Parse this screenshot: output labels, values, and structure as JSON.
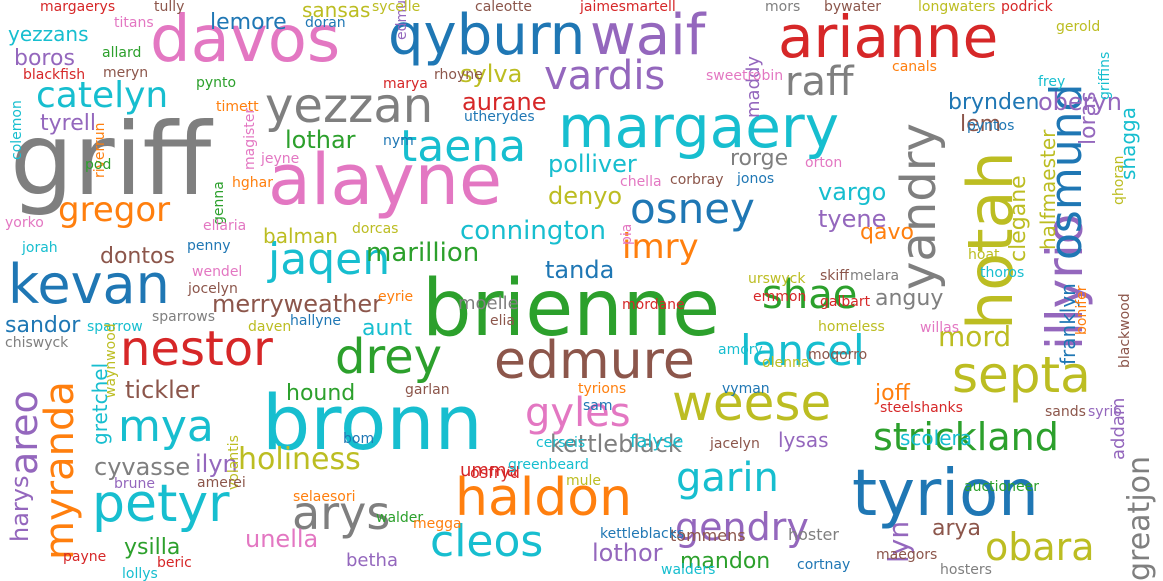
{
  "palette": {
    "blue": "#1f77b4",
    "orange": "#ff7f0e",
    "green": "#2ca02c",
    "red": "#d62728",
    "purple": "#9467bd",
    "brown": "#8c564b",
    "pink": "#e377c2",
    "gray": "#7f7f7f",
    "olive": "#bcbd22",
    "cyan": "#17becf"
  },
  "words": [
    {
      "text": "griff",
      "c": "gray"
    },
    {
      "text": "brienne",
      "c": "green"
    },
    {
      "text": "bronn",
      "c": "cyan"
    },
    {
      "text": "alayne",
      "c": "pink"
    },
    {
      "text": "davos",
      "c": "pink"
    },
    {
      "text": "tyrion",
      "c": "blue"
    },
    {
      "text": "hotah",
      "c": "olive"
    },
    {
      "text": "arianne",
      "c": "red"
    },
    {
      "text": "margaery",
      "c": "cyan"
    },
    {
      "text": "qyburn",
      "c": "blue"
    },
    {
      "text": "waif",
      "c": "purple"
    },
    {
      "text": "edmure",
      "c": "brown"
    },
    {
      "text": "kevan",
      "c": "blue"
    },
    {
      "text": "petyr",
      "c": "cyan"
    },
    {
      "text": "haldon",
      "c": "orange"
    },
    {
      "text": "yezzan",
      "c": "gray"
    },
    {
      "text": "weese",
      "c": "olive"
    },
    {
      "text": "yandry",
      "c": "gray"
    },
    {
      "text": "nestor",
      "c": "red"
    },
    {
      "text": "drey",
      "c": "green"
    },
    {
      "text": "septa",
      "c": "olive"
    },
    {
      "text": "illyrio",
      "c": "purple"
    },
    {
      "text": "osmund",
      "c": "blue"
    },
    {
      "text": "arys",
      "c": "gray"
    },
    {
      "text": "cleos",
      "c": "cyan"
    },
    {
      "text": "mya",
      "c": "cyan"
    },
    {
      "text": "lancel",
      "c": "cyan"
    },
    {
      "text": "osney",
      "c": "blue"
    },
    {
      "text": "shae",
      "c": "green"
    },
    {
      "text": "jaqen",
      "c": "cyan"
    },
    {
      "text": "taena",
      "c": "cyan"
    },
    {
      "text": "vardis",
      "c": "purple"
    },
    {
      "text": "gyles",
      "c": "pink"
    },
    {
      "text": "garin",
      "c": "cyan"
    },
    {
      "text": "gendry",
      "c": "purple"
    },
    {
      "text": "obara",
      "c": "olive"
    },
    {
      "text": "areo",
      "c": "purple"
    },
    {
      "text": "myranda",
      "c": "orange"
    },
    {
      "text": "strickland",
      "c": "green"
    },
    {
      "text": "raff",
      "c": "gray"
    },
    {
      "text": "catelyn",
      "c": "cyan"
    },
    {
      "text": "gregor",
      "c": "orange"
    },
    {
      "text": "imry",
      "c": "orange"
    },
    {
      "text": "holiness",
      "c": "olive"
    },
    {
      "text": "mord",
      "c": "olive"
    },
    {
      "text": "kettleblack",
      "c": "gray"
    },
    {
      "text": "connington",
      "c": "cyan"
    },
    {
      "text": "merryweather",
      "c": "brown"
    },
    {
      "text": "marillion",
      "c": "green"
    },
    {
      "text": "oberyn",
      "c": "purple"
    },
    {
      "text": "brynden",
      "c": "blue"
    },
    {
      "text": "lem",
      "c": "brown"
    },
    {
      "text": "loras",
      "c": "purple"
    },
    {
      "text": "shagga",
      "c": "cyan"
    },
    {
      "text": "halfmaester",
      "c": "olive"
    },
    {
      "text": "clegane",
      "c": "olive"
    },
    {
      "text": "franklyn",
      "c": "blue"
    },
    {
      "text": "greatjon",
      "c": "gray"
    },
    {
      "text": "addam",
      "c": "purple"
    },
    {
      "text": "sylva",
      "c": "olive"
    },
    {
      "text": "aurane",
      "c": "red"
    },
    {
      "text": "lothar",
      "c": "green"
    },
    {
      "text": "polliver",
      "c": "cyan"
    },
    {
      "text": "rorge",
      "c": "gray"
    },
    {
      "text": "denyo",
      "c": "olive"
    },
    {
      "text": "vargo",
      "c": "cyan"
    },
    {
      "text": "tyene",
      "c": "purple"
    },
    {
      "text": "qavo",
      "c": "orange"
    },
    {
      "text": "anguy",
      "c": "gray"
    },
    {
      "text": "tanda",
      "c": "blue"
    },
    {
      "text": "moelle",
      "c": "gray"
    },
    {
      "text": "dontos",
      "c": "brown"
    },
    {
      "text": "balman",
      "c": "olive"
    },
    {
      "text": "sandor",
      "c": "blue"
    },
    {
      "text": "tickler",
      "c": "brown"
    },
    {
      "text": "hound",
      "c": "green"
    },
    {
      "text": "aunt",
      "c": "cyan"
    },
    {
      "text": "cyvasse",
      "c": "gray"
    },
    {
      "text": "ilyn",
      "c": "purple"
    },
    {
      "text": "umma",
      "c": "red"
    },
    {
      "text": "falyse",
      "c": "cyan"
    },
    {
      "text": "lysas",
      "c": "purple"
    },
    {
      "text": "scolera",
      "c": "cyan"
    },
    {
      "text": "joff",
      "c": "orange"
    },
    {
      "text": "gretchel",
      "c": "cyan"
    },
    {
      "text": "harys",
      "c": "purple"
    },
    {
      "text": "ysilla",
      "c": "green"
    },
    {
      "text": "unella",
      "c": "pink"
    },
    {
      "text": "betha",
      "c": "purple"
    },
    {
      "text": "lothor",
      "c": "purple"
    },
    {
      "text": "mandon",
      "c": "green"
    },
    {
      "text": "arya",
      "c": "brown"
    },
    {
      "text": "lyn",
      "c": "purple"
    },
    {
      "text": "maddy",
      "c": "purple"
    },
    {
      "text": "tyrell",
      "c": "purple"
    },
    {
      "text": "boros",
      "c": "purple"
    },
    {
      "text": "yezzans",
      "c": "cyan"
    },
    {
      "text": "lemore",
      "c": "blue"
    },
    {
      "text": "sansas",
      "c": "olive"
    },
    {
      "text": "osfryd",
      "c": "red"
    },
    {
      "text": "hoster",
      "c": "gray"
    },
    {
      "text": "tommens",
      "c": "brown"
    },
    {
      "text": "walder",
      "c": "green"
    },
    {
      "text": "auctioneer",
      "c": "green"
    },
    {
      "text": "emmon",
      "c": "red"
    },
    {
      "text": "urswyck",
      "c": "olive"
    },
    {
      "text": "mordane",
      "c": "red"
    },
    {
      "text": "jacelyn",
      "c": "brown"
    },
    {
      "text": "greenbeard",
      "c": "cyan"
    },
    {
      "text": "corbray",
      "c": "brown"
    },
    {
      "text": "jonos",
      "c": "blue"
    },
    {
      "text": "dorcas",
      "c": "olive"
    },
    {
      "text": "penny",
      "c": "blue"
    },
    {
      "text": "wendel",
      "c": "pink"
    },
    {
      "text": "jocelyn",
      "c": "brown"
    },
    {
      "text": "sparrows",
      "c": "gray"
    },
    {
      "text": "hallyne",
      "c": "blue"
    },
    {
      "text": "daven",
      "c": "olive"
    },
    {
      "text": "eyrie",
      "c": "orange"
    },
    {
      "text": "elia",
      "c": "brown"
    },
    {
      "text": "garlan",
      "c": "brown"
    },
    {
      "text": "tyrions",
      "c": "orange"
    },
    {
      "text": "sam",
      "c": "blue"
    },
    {
      "text": "vyman",
      "c": "blue"
    },
    {
      "text": "olenna",
      "c": "olive"
    },
    {
      "text": "moqorro",
      "c": "brown"
    },
    {
      "text": "steelshanks",
      "c": "red"
    },
    {
      "text": "sands",
      "c": "brown"
    },
    {
      "text": "syrio",
      "c": "purple"
    },
    {
      "text": "homeless",
      "c": "olive"
    },
    {
      "text": "galbart",
      "c": "red"
    },
    {
      "text": "willas",
      "c": "pink"
    },
    {
      "text": "bonifer",
      "c": "orange"
    },
    {
      "text": "blackwood",
      "c": "brown"
    },
    {
      "text": "skiff",
      "c": "brown"
    },
    {
      "text": "melara",
      "c": "gray"
    },
    {
      "text": "hoat",
      "c": "olive"
    },
    {
      "text": "thoros",
      "c": "cyan"
    },
    {
      "text": "amory",
      "c": "cyan"
    },
    {
      "text": "margaerys",
      "c": "red"
    },
    {
      "text": "tully",
      "c": "brown"
    },
    {
      "text": "titans",
      "c": "pink"
    },
    {
      "text": "doran",
      "c": "blue"
    },
    {
      "text": "edmures",
      "c": "purple"
    },
    {
      "text": "sycelle",
      "c": "olive"
    },
    {
      "text": "caleotte",
      "c": "brown"
    },
    {
      "text": "jaimesmartell",
      "c": "red"
    },
    {
      "text": "mors",
      "c": "gray"
    },
    {
      "text": "bywater",
      "c": "brown"
    },
    {
      "text": "longwaters",
      "c": "olive"
    },
    {
      "text": "podrick",
      "c": "red"
    },
    {
      "text": "gerold",
      "c": "olive"
    },
    {
      "text": "allard",
      "c": "green"
    },
    {
      "text": "meryn",
      "c": "brown"
    },
    {
      "text": "blackfish",
      "c": "red"
    },
    {
      "text": "pynto",
      "c": "green"
    },
    {
      "text": "marya",
      "c": "red"
    },
    {
      "text": "rhoyne",
      "c": "brown"
    },
    {
      "text": "sweetrobin",
      "c": "pink"
    },
    {
      "text": "canals",
      "c": "orange"
    },
    {
      "text": "frey",
      "c": "cyan"
    },
    {
      "text": "griffins",
      "c": "cyan"
    },
    {
      "text": "colemon",
      "c": "cyan"
    },
    {
      "text": "timett",
      "c": "orange"
    },
    {
      "text": "utherydes",
      "c": "blue"
    },
    {
      "text": "pyntos",
      "c": "blue"
    },
    {
      "text": "nym",
      "c": "blue"
    },
    {
      "text": "jeyne",
      "c": "pink"
    },
    {
      "text": "riverrun",
      "c": "orange"
    },
    {
      "text": "pod",
      "c": "green"
    },
    {
      "text": "orton",
      "c": "pink"
    },
    {
      "text": "chella",
      "c": "pink"
    },
    {
      "text": "qhoran",
      "c": "olive"
    },
    {
      "text": "hghar",
      "c": "orange"
    },
    {
      "text": "genna",
      "c": "green"
    },
    {
      "text": "magister",
      "c": "pink"
    },
    {
      "text": "pia",
      "c": "pink"
    },
    {
      "text": "yorko",
      "c": "pink"
    },
    {
      "text": "ellaria",
      "c": "pink"
    },
    {
      "text": "jorah",
      "c": "cyan"
    },
    {
      "text": "chiswyck",
      "c": "gray"
    },
    {
      "text": "sparrow",
      "c": "cyan"
    },
    {
      "text": "waynwood",
      "c": "olive"
    },
    {
      "text": "volantis",
      "c": "olive"
    },
    {
      "text": "bom",
      "c": "blue"
    },
    {
      "text": "cerseis",
      "c": "cyan"
    },
    {
      "text": "brune",
      "c": "purple"
    },
    {
      "text": "amerei",
      "c": "brown"
    },
    {
      "text": "selaesori",
      "c": "orange"
    },
    {
      "text": "mule",
      "c": "olive"
    },
    {
      "text": "megga",
      "c": "orange"
    },
    {
      "text": "kettleblacks",
      "c": "blue"
    },
    {
      "text": "maegors",
      "c": "brown"
    },
    {
      "text": "walders",
      "c": "cyan"
    },
    {
      "text": "cortnay",
      "c": "blue"
    },
    {
      "text": "hosters",
      "c": "gray"
    },
    {
      "text": "payne",
      "c": "red"
    },
    {
      "text": "beric",
      "c": "red"
    },
    {
      "text": "lollys",
      "c": "cyan"
    }
  ]
}
